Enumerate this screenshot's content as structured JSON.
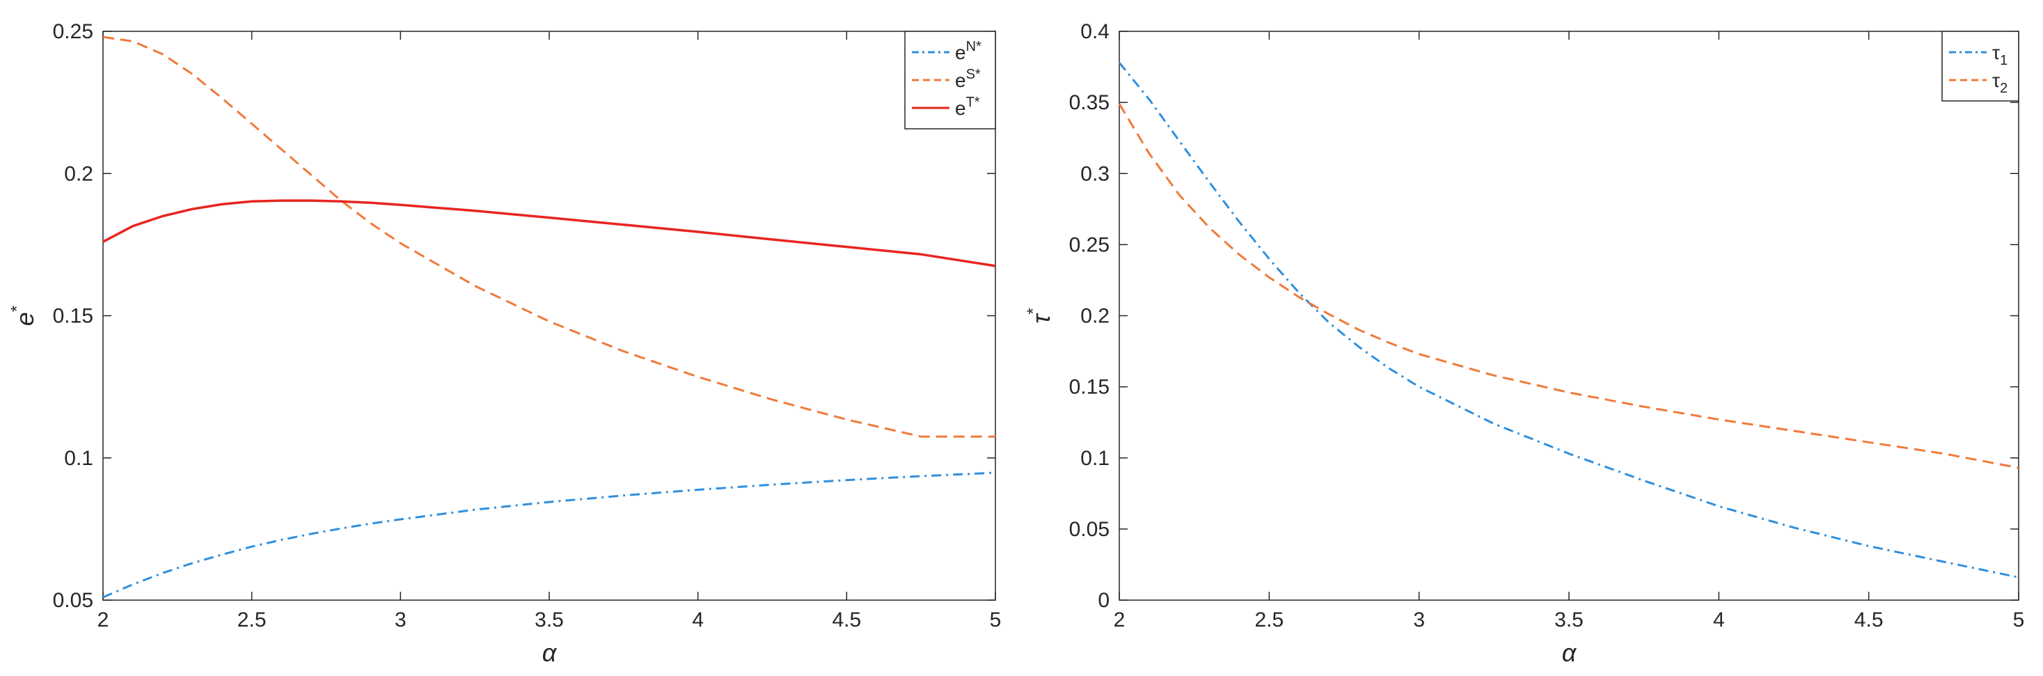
{
  "chart_data": [
    {
      "type": "line",
      "xlabel": "α",
      "ylabel": "e",
      "ylabel_sup": "*",
      "xlim": [
        2,
        5
      ],
      "ylim": [
        0.05,
        0.25
      ],
      "xticks": [
        "2",
        "2.5",
        "3",
        "3.5",
        "4",
        "4.5",
        "5"
      ],
      "yticks": [
        "0.05",
        "0.1",
        "0.15",
        "0.2",
        "0.25"
      ],
      "grid": false,
      "legend_position": "top-right",
      "x": [
        2.0,
        2.1,
        2.2,
        2.3,
        2.4,
        2.5,
        2.6,
        2.7,
        2.8,
        2.9,
        3.0,
        3.25,
        3.5,
        3.75,
        4.0,
        4.25,
        4.5,
        4.75,
        5.0
      ],
      "series": [
        {
          "name": "e",
          "sup": "N*",
          "color": "#2f8fde",
          "dash": "dashdot",
          "values": [
            0.051,
            0.0555,
            0.0595,
            0.063,
            0.066,
            0.0688,
            0.0712,
            0.0733,
            0.0752,
            0.0769,
            0.0784,
            0.0818,
            0.0845,
            0.0868,
            0.0888,
            0.0906,
            0.0922,
            0.0936,
            0.0948
          ]
        },
        {
          "name": "e",
          "sup": "S*",
          "color": "#f07a3a",
          "dash": "dashed",
          "values": [
            0.248,
            0.2465,
            0.242,
            0.235,
            0.2265,
            0.2175,
            0.2085,
            0.1995,
            0.1905,
            0.1825,
            0.1755,
            0.1605,
            0.148,
            0.1375,
            0.1285,
            0.1205,
            0.1135,
            0.1075,
            0.1075
          ]
        },
        {
          "name": "e",
          "sup": "T*",
          "color": "#e8251f",
          "dash": "solid",
          "values": [
            0.176,
            0.1815,
            0.185,
            0.1875,
            0.1892,
            0.1902,
            0.1905,
            0.1905,
            0.1902,
            0.1897,
            0.189,
            0.1869,
            0.1845,
            0.182,
            0.1795,
            0.1768,
            0.1742,
            0.1716,
            0.1675
          ]
        }
      ]
    },
    {
      "type": "line",
      "xlabel": "α",
      "ylabel": "τ",
      "ylabel_sup": "*",
      "xlim": [
        2,
        5
      ],
      "ylim": [
        0,
        0.4
      ],
      "xticks": [
        "2",
        "2.5",
        "3",
        "3.5",
        "4",
        "4.5",
        "5"
      ],
      "yticks": [
        "0",
        "0.05",
        "0.1",
        "0.15",
        "0.2",
        "0.25",
        "0.3",
        "0.35",
        "0.4"
      ],
      "grid": false,
      "legend_position": "top-right",
      "x": [
        2.0,
        2.1,
        2.2,
        2.3,
        2.4,
        2.5,
        2.6,
        2.7,
        2.8,
        2.9,
        3.0,
        3.25,
        3.5,
        3.75,
        4.0,
        4.25,
        4.5,
        4.75,
        5.0
      ],
      "series": [
        {
          "name": "τ",
          "sub": "1",
          "color": "#2f8fde",
          "dash": "dashdot",
          "values": [
            0.378,
            0.352,
            0.323,
            0.294,
            0.266,
            0.24,
            0.216,
            0.195,
            0.178,
            0.163,
            0.15,
            0.124,
            0.103,
            0.084,
            0.066,
            0.051,
            0.038,
            0.027,
            0.016
          ]
        },
        {
          "name": "τ",
          "sub": "2",
          "color": "#f07a3a",
          "dash": "dashed",
          "values": [
            0.349,
            0.314,
            0.285,
            0.262,
            0.243,
            0.227,
            0.213,
            0.201,
            0.19,
            0.181,
            0.173,
            0.158,
            0.146,
            0.136,
            0.127,
            0.119,
            0.111,
            0.103,
            0.093
          ]
        }
      ]
    }
  ]
}
